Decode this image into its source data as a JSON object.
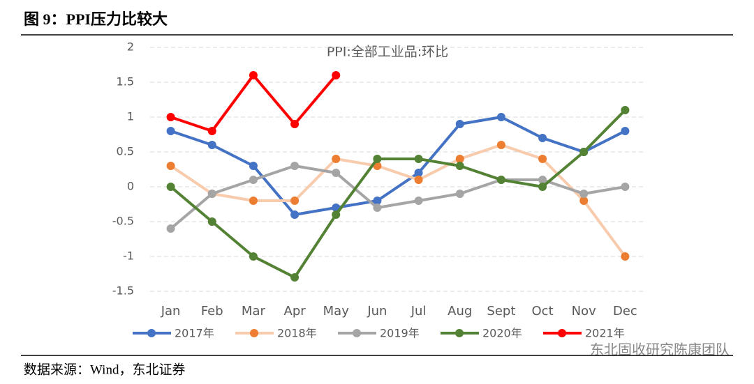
{
  "figure_title": "图 9：PPI压力比较大",
  "source": "数据来源：Wind，东北证券",
  "watermark": "东北固收研究陈康团队",
  "chart_data": {
    "type": "line",
    "title": "PPI:全部工业品:环比",
    "categories": [
      "Jan",
      "Feb",
      "Mar",
      "Apr",
      "May",
      "Jun",
      "Jul",
      "Aug",
      "Sept",
      "Oct",
      "Nov",
      "Dec"
    ],
    "series": [
      {
        "name": "2017年",
        "color": "#4472c4",
        "values": [
          0.8,
          0.6,
          0.3,
          -0.4,
          -0.3,
          -0.2,
          0.2,
          0.9,
          1,
          0.7,
          0.5,
          0.8
        ]
      },
      {
        "name": "2018年",
        "color": "#f8cbad",
        "marker_color": "#ed7d31",
        "values": [
          0.3,
          -0.1,
          -0.2,
          -0.2,
          0.4,
          0.3,
          0.1,
          0.4,
          0.6,
          0.4,
          -0.2,
          -1
        ]
      },
      {
        "name": "2019年",
        "color": "#a5a5a5",
        "values": [
          -0.6,
          -0.1,
          0.1,
          0.3,
          0.2,
          -0.3,
          -0.2,
          -0.1,
          0.1,
          0.1,
          -0.1,
          0
        ]
      },
      {
        "name": "2020年",
        "color": "#548235",
        "values": [
          0,
          -0.5,
          -1,
          -1.3,
          -0.4,
          0.4,
          0.4,
          0.3,
          0.1,
          0,
          0.5,
          1.1
        ]
      },
      {
        "name": "2021年",
        "color": "#ff0000",
        "values": [
          1,
          0.8,
          1.6,
          0.9,
          1.6,
          null,
          null,
          null,
          null,
          null,
          null,
          null
        ]
      }
    ],
    "ylim": [
      -1.5,
      2
    ],
    "yticks": [
      -1.5,
      -1,
      -0.5,
      0,
      0.5,
      1,
      1.5,
      2
    ],
    "grid": true
  }
}
